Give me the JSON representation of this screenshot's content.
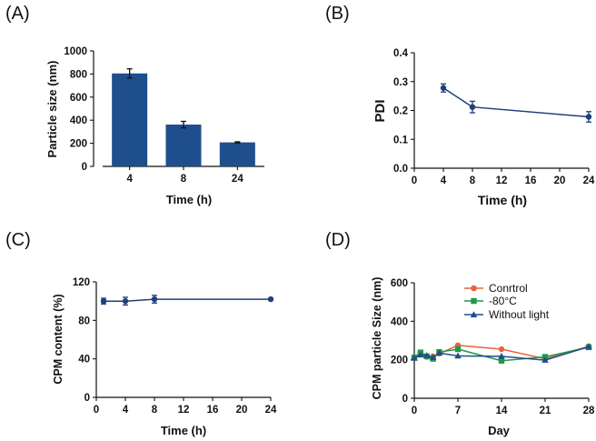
{
  "figure": {
    "panels": [
      "A",
      "B",
      "C",
      "D"
    ]
  },
  "chart_data": [
    {
      "id": "A",
      "label": "(A)",
      "type": "bar",
      "categories": [
        "4",
        "8",
        "24"
      ],
      "values": [
        805,
        362,
        208
      ],
      "errors": [
        40,
        28,
        5
      ],
      "xlabel": "Time (h)",
      "ylabel": "Particle size (nm)",
      "ylim": [
        0,
        1000
      ],
      "yticks": [
        0,
        200,
        400,
        600,
        800,
        1000
      ],
      "color": "#1f4e8c",
      "grid": false
    },
    {
      "id": "B",
      "label": "(B)",
      "type": "line",
      "series": [
        {
          "name": "PDI",
          "x": [
            4,
            8,
            24
          ],
          "y": [
            0.278,
            0.212,
            0.178
          ],
          "err": [
            0.014,
            0.02,
            0.018
          ],
          "color": "#1f3f7a",
          "marker": "circle"
        }
      ],
      "xlabel": "Time (h)",
      "ylabel": "PDI",
      "xlim": [
        0,
        24
      ],
      "xticks": [
        0,
        4,
        8,
        12,
        16,
        20,
        24
      ],
      "ylim": [
        0,
        0.4
      ],
      "yticks": [
        0.0,
        0.1,
        0.2,
        0.3,
        0.4
      ],
      "ytick_labels": [
        "0.0",
        "0.1",
        "0.2",
        "0.3",
        "0.4"
      ],
      "grid": false
    },
    {
      "id": "C",
      "label": "(C)",
      "type": "line",
      "series": [
        {
          "name": "CPM content",
          "x": [
            1,
            4,
            8,
            24
          ],
          "y": [
            100,
            100,
            102,
            102
          ],
          "err": [
            3,
            4,
            4,
            0
          ],
          "color": "#1f3f7a",
          "marker": "circle"
        }
      ],
      "xlabel": "Time (h)",
      "ylabel": "CPM content (%)",
      "xlim": [
        0,
        24
      ],
      "xticks": [
        0,
        4,
        8,
        12,
        16,
        20,
        24
      ],
      "ylim": [
        0,
        120
      ],
      "yticks": [
        0,
        40,
        80,
        120
      ],
      "grid": false
    },
    {
      "id": "D",
      "label": "(D)",
      "type": "line",
      "series": [
        {
          "name": "Conrtrol",
          "x": [
            0,
            1,
            2,
            3,
            4,
            7,
            14,
            21,
            28
          ],
          "y": [
            210,
            230,
            215,
            218,
            232,
            275,
            255,
            205,
            270
          ],
          "color": "#e8643c",
          "marker": "circle"
        },
        {
          "name": "-80°C",
          "x": [
            0,
            1,
            2,
            3,
            4,
            7,
            14,
            21,
            28
          ],
          "y": [
            212,
            238,
            218,
            205,
            240,
            255,
            195,
            215,
            265
          ],
          "color": "#1e9a4a",
          "marker": "square"
        },
        {
          "name": "Without light",
          "x": [
            0,
            1,
            2,
            3,
            4,
            7,
            14,
            21,
            28
          ],
          "y": [
            208,
            225,
            222,
            212,
            235,
            220,
            218,
            198,
            268
          ],
          "color": "#1f4e8c",
          "marker": "triangle"
        }
      ],
      "xlabel": "Day",
      "ylabel": "CPM particle Size (nm)",
      "xlim": [
        0,
        28
      ],
      "xticks": [
        0,
        7,
        14,
        21,
        28
      ],
      "ylim": [
        0,
        600
      ],
      "yticks": [
        0,
        200,
        400,
        600
      ],
      "legend_position": "top-right",
      "grid": false
    }
  ]
}
